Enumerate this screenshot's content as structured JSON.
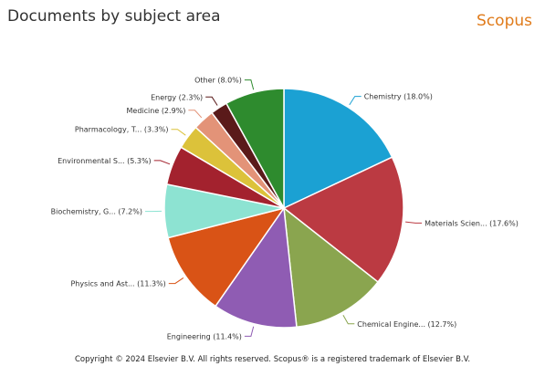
{
  "header": {
    "title": "Documents by subject area",
    "brand": "Scopus"
  },
  "footer": {
    "copyright": "Copyright © 2024 Elsevier B.V. All rights reserved. Scopus® is a registered trademark of Elsevier B.V."
  },
  "chart_data": {
    "type": "pie",
    "title": "Documents by subject area",
    "slices": [
      {
        "label": "Chemistry (18.0%)",
        "value": 18.0,
        "color": "#1ba1d3"
      },
      {
        "label": "Materials Scien... (17.6%)",
        "value": 17.6,
        "color": "#bb3a42"
      },
      {
        "label": "Chemical Engine... (12.7%)",
        "value": 12.7,
        "color": "#8aa54f"
      },
      {
        "label": "Engineering (11.4%)",
        "value": 11.4,
        "color": "#8f5cb3"
      },
      {
        "label": "Physics and Ast... (11.3%)",
        "value": 11.3,
        "color": "#d95316"
      },
      {
        "label": "Biochemistry, G... (7.2%)",
        "value": 7.2,
        "color": "#8de3d2"
      },
      {
        "label": "Environmental S... (5.3%)",
        "value": 5.3,
        "color": "#a3222e"
      },
      {
        "label": "Pharmacology, T... (3.3%)",
        "value": 3.3,
        "color": "#dcc23a"
      },
      {
        "label": "Medicine (2.9%)",
        "value": 2.9,
        "color": "#e39378"
      },
      {
        "label": "Energy (2.3%)",
        "value": 2.3,
        "color": "#5a1a1a"
      },
      {
        "label": "Other (8.0%)",
        "value": 8.0,
        "color": "#2e8b2e"
      }
    ]
  }
}
